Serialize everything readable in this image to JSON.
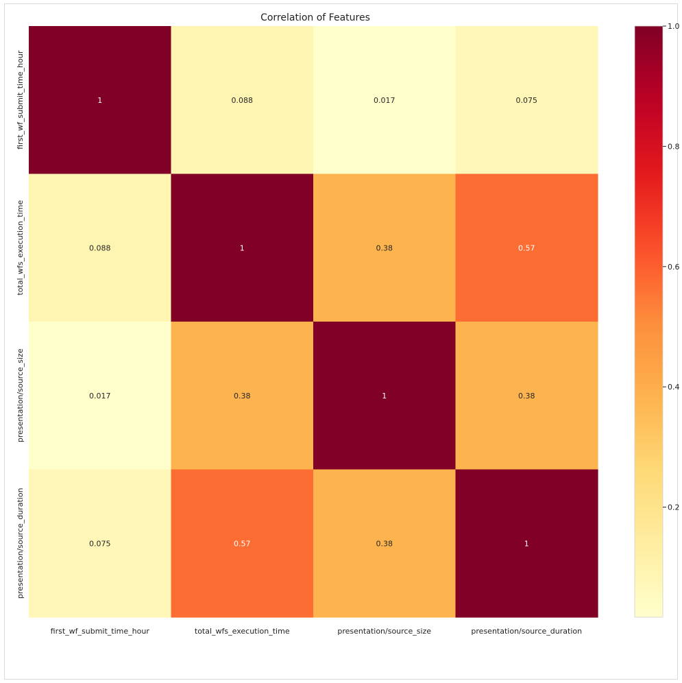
{
  "chart_data": {
    "type": "heatmap",
    "title": "Correlation of Features",
    "rows": [
      "first_wf_submit_time_hour",
      "total_wfs_execution_time",
      "presentation/source_size",
      "presentation/source_duration"
    ],
    "columns": [
      "first_wf_submit_time_hour",
      "total_wfs_execution_time",
      "presentation/source_size",
      "presentation/source_duration"
    ],
    "values": [
      [
        1,
        0.088,
        0.017,
        0.075
      ],
      [
        0.088,
        1,
        0.38,
        0.57
      ],
      [
        0.017,
        0.38,
        1,
        0.38
      ],
      [
        0.075,
        0.57,
        0.38,
        1
      ]
    ],
    "labels": [
      [
        "1",
        "0.088",
        "0.017",
        "0.075"
      ],
      [
        "0.088",
        "1",
        "0.38",
        "0.57"
      ],
      [
        "0.017",
        "0.38",
        "1",
        "0.38"
      ],
      [
        "0.075",
        "0.57",
        "0.38",
        "1"
      ]
    ],
    "colormap": "YlOrRd",
    "colorbar": {
      "range": [
        0.017,
        1.0
      ],
      "ticks": [
        0.2,
        0.4,
        0.6,
        0.8,
        1.0
      ],
      "tick_labels": [
        "0.2",
        "0.4",
        "0.6",
        "0.8",
        "1.0"
      ]
    }
  }
}
